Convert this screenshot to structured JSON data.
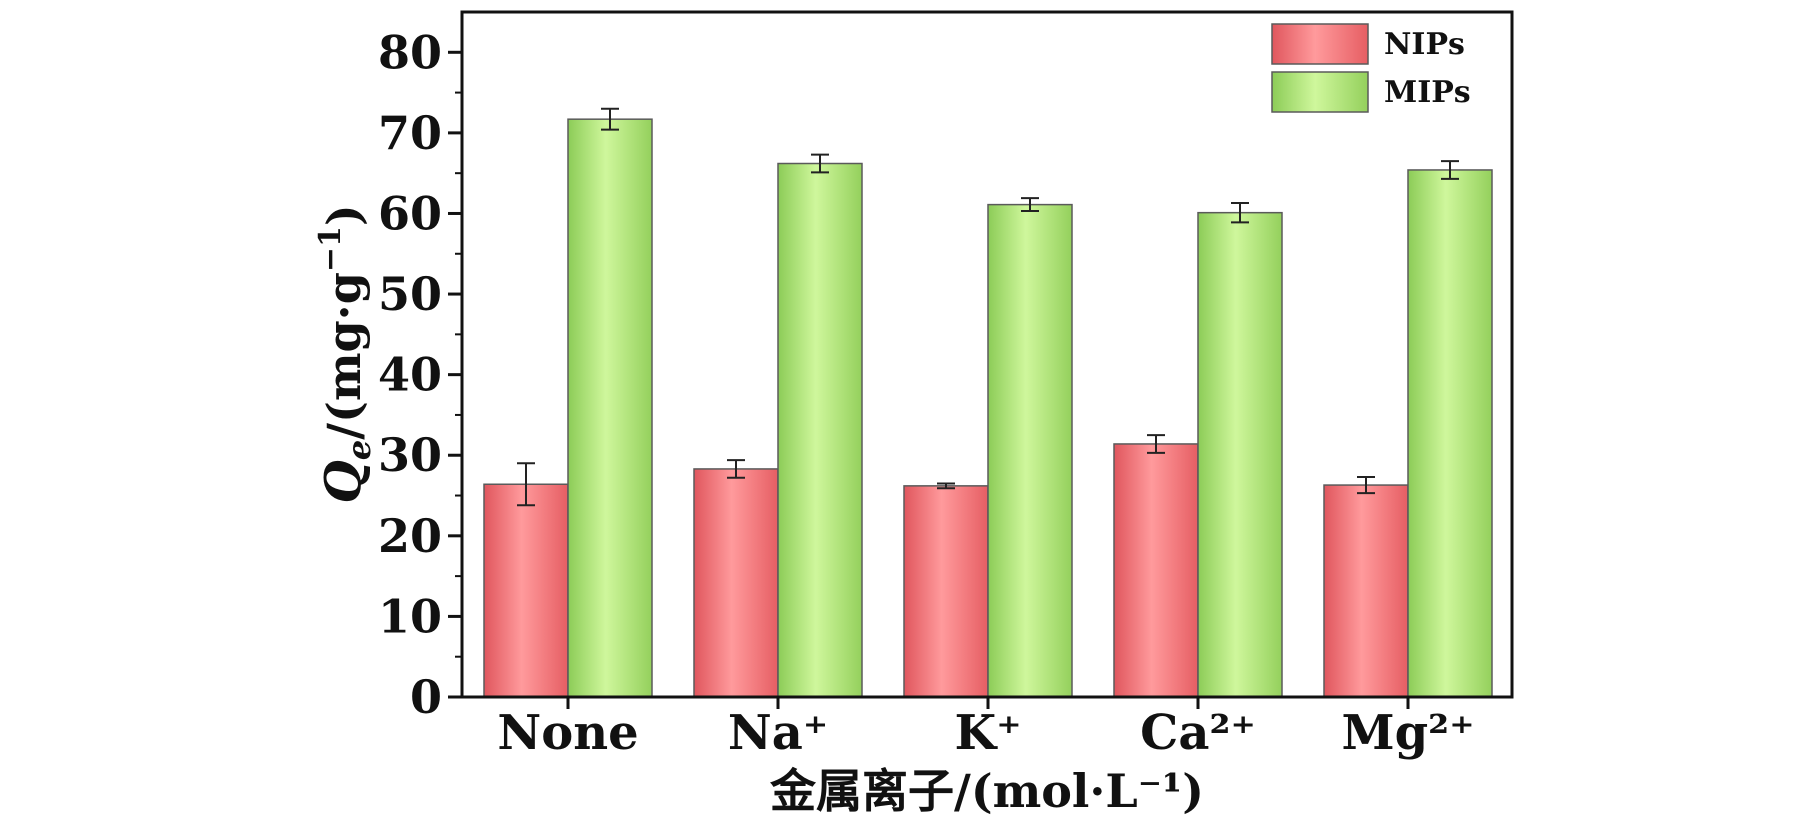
{
  "chart_data": {
    "type": "bar",
    "categories": [
      "None",
      "Na⁺",
      "K⁺",
      "Ca²⁺",
      "Mg²⁺"
    ],
    "series": [
      {
        "name": "NIPs",
        "values": [
          26.4,
          28.3,
          26.2,
          31.4,
          26.3
        ],
        "errors": [
          2.6,
          1.1,
          0.3,
          1.1,
          1.0
        ],
        "color": "#f0767a"
      },
      {
        "name": "MIPs",
        "values": [
          71.7,
          66.2,
          61.1,
          60.1,
          65.4
        ],
        "errors": [
          1.3,
          1.1,
          0.8,
          1.2,
          1.1
        ],
        "color": "#a9e078"
      }
    ],
    "xlabel": "金属离子/(mol·L⁻¹)",
    "ylabel": "Qe/(mg·g⁻¹)",
    "ylabel_parts": {
      "q": "Q",
      "sub": "e",
      "rest": "/(mg·g",
      "sup": "−1",
      "close": ")"
    },
    "yticks": [
      0,
      10,
      20,
      30,
      40,
      50,
      60,
      70,
      80
    ],
    "ylim": [
      0,
      85
    ],
    "grid": false,
    "legend_position": "top-right"
  }
}
